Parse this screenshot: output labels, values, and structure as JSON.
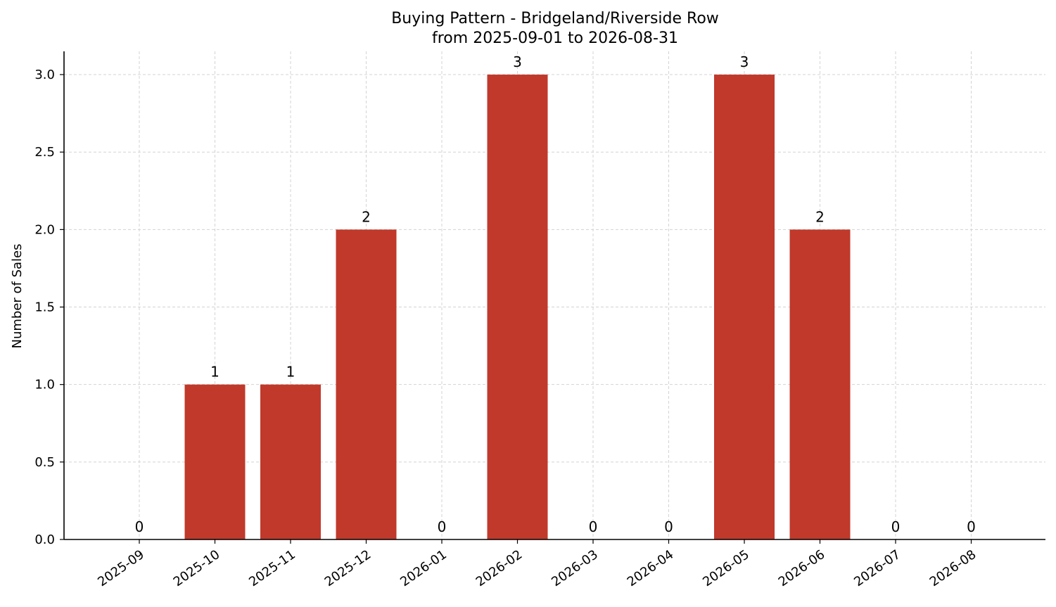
{
  "chart_data": {
    "type": "bar",
    "title_line1": "Buying Pattern - Bridgeland/Riverside Row",
    "title_line2": "from 2025-09-01 to 2026-08-31",
    "xlabel": "",
    "ylabel": "Number of Sales",
    "categories": [
      "2025-09",
      "2025-10",
      "2025-11",
      "2025-12",
      "2026-01",
      "2026-02",
      "2026-03",
      "2026-04",
      "2026-05",
      "2026-06",
      "2026-07",
      "2026-08"
    ],
    "values": [
      0,
      1,
      1,
      2,
      0,
      3,
      0,
      0,
      3,
      2,
      0,
      0
    ],
    "data_labels": [
      "0",
      "1",
      "1",
      "2",
      "0",
      "3",
      "0",
      "0",
      "3",
      "2",
      "0",
      "0"
    ],
    "yticks": [
      0.0,
      0.5,
      1.0,
      1.5,
      2.0,
      2.5,
      3.0
    ],
    "ytick_labels": [
      "0.0",
      "0.5",
      "1.0",
      "1.5",
      "2.0",
      "2.5",
      "3.0"
    ],
    "ylim": [
      0,
      3.15
    ],
    "grid": true,
    "bar_color": "#c0392b"
  }
}
